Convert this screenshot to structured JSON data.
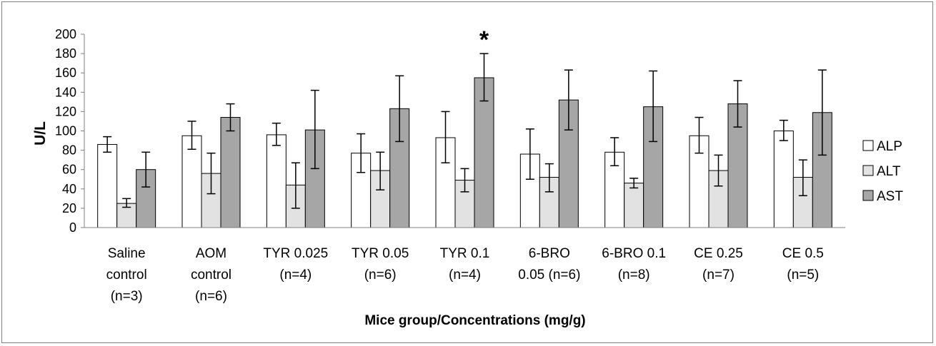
{
  "chart_data": {
    "type": "bar",
    "title": "",
    "xlabel": "Mice group/Concentrations (mg/g)",
    "ylabel": "U/L",
    "ylim": [
      0,
      200
    ],
    "yticks": [
      0,
      20,
      40,
      60,
      80,
      100,
      120,
      140,
      160,
      180,
      200
    ],
    "grid": false,
    "legend_position": "right",
    "categories": [
      [
        "Saline",
        "control",
        "(n=3)"
      ],
      [
        "AOM",
        "control",
        "(n=6)"
      ],
      [
        "TYR 0.025",
        "(n=4)"
      ],
      [
        "TYR 0.05",
        "(n=6)"
      ],
      [
        "TYR 0.1",
        "(n=4)"
      ],
      [
        "6-BRO",
        "0.05 (n=6)"
      ],
      [
        "6-BRO 0.1",
        "(n=8)"
      ],
      [
        "CE 0.25",
        "(n=7)"
      ],
      [
        "CE 0.5",
        "(n=5)"
      ]
    ],
    "series": [
      {
        "name": "ALP",
        "color": "#ffffff",
        "values": [
          86,
          95,
          96,
          77,
          93,
          76,
          78,
          95,
          100
        ],
        "err_low": [
          78,
          81,
          85,
          57,
          67,
          50,
          64,
          77,
          90
        ],
        "err_high": [
          94,
          110,
          108,
          97,
          120,
          102,
          93,
          114,
          111
        ]
      },
      {
        "name": "ALT",
        "color": "#e2e2e2",
        "values": [
          25,
          56,
          44,
          59,
          49,
          52,
          46,
          59,
          52
        ],
        "err_low": [
          21,
          35,
          20,
          39,
          37,
          37,
          41,
          43,
          33
        ],
        "err_high": [
          30,
          77,
          67,
          78,
          61,
          66,
          51,
          75,
          70
        ]
      },
      {
        "name": "AST",
        "color": "#a6a6a6",
        "values": [
          60,
          114,
          101,
          123,
          155,
          132,
          125,
          128,
          119
        ],
        "err_low": [
          42,
          100,
          61,
          89,
          131,
          101,
          89,
          104,
          75
        ],
        "err_high": [
          78,
          128,
          142,
          157,
          180,
          163,
          162,
          152,
          163
        ]
      }
    ],
    "annotations": [
      {
        "text": "*",
        "category_index": 4,
        "series": "AST"
      }
    ]
  }
}
